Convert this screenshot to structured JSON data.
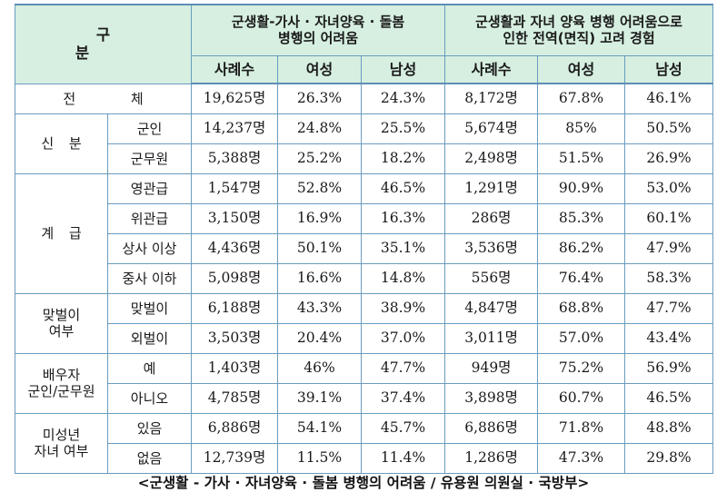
{
  "header": {
    "gubun": "구 분",
    "group1": "군생활-가사 · 자녀양육 · 돌봄\n병행의 어려움",
    "group2": "군생활과 자녀 양육 병행 어려움으로\n인한 전역(면직) 고려 경험",
    "cols": [
      "사례수",
      "여성",
      "남성",
      "사례수",
      "여성",
      "남성"
    ]
  },
  "total": {
    "label": "전 체",
    "values": [
      "19,625명",
      "26.3%",
      "24.3%",
      "8,172명",
      "67.8%",
      "46.1%"
    ]
  },
  "groups": [
    {
      "label": "신 분",
      "rows": [
        {
          "sub": "군인",
          "values": [
            "14,237명",
            "24.8%",
            "25.5%",
            "5,674명",
            "85%",
            "50.5%"
          ]
        },
        {
          "sub": "군무원",
          "values": [
            "5,388명",
            "25.2%",
            "18.2%",
            "2,498명",
            "51.5%",
            "26.9%"
          ]
        }
      ]
    },
    {
      "label": "계 급",
      "rows": [
        {
          "sub": "영관급",
          "values": [
            "1,547명",
            "52.8%",
            "46.5%",
            "1,291명",
            "90.9%",
            "53.0%"
          ]
        },
        {
          "sub": "위관급",
          "values": [
            "3,150명",
            "16.9%",
            "16.3%",
            "286명",
            "85.3%",
            "60.1%"
          ]
        },
        {
          "sub": "상사 이상",
          "values": [
            "4,436명",
            "50.1%",
            "35.1%",
            "3,536명",
            "86.2%",
            "47.9%"
          ]
        },
        {
          "sub": "중사 이하",
          "values": [
            "5,098명",
            "16.6%",
            "14.8%",
            "556명",
            "76.4%",
            "58.3%"
          ]
        }
      ]
    },
    {
      "label": "맞벌이\n여부",
      "rows": [
        {
          "sub": "맞벌이",
          "values": [
            "6,188명",
            "43.3%",
            "38.9%",
            "4,847명",
            "68.8%",
            "47.7%"
          ]
        },
        {
          "sub": "외벌이",
          "values": [
            "3,503명",
            "20.4%",
            "37.0%",
            "3,011명",
            "57.0%",
            "43.4%"
          ]
        }
      ]
    },
    {
      "label": "배우자\n군인/군무원",
      "rows": [
        {
          "sub": "예",
          "values": [
            "1,403명",
            "46%",
            "47.7%",
            "949명",
            "75.2%",
            "56.9%"
          ]
        },
        {
          "sub": "아니오",
          "values": [
            "4,785명",
            "39.1%",
            "37.4%",
            "3,898명",
            "60.7%",
            "46.5%"
          ]
        }
      ]
    },
    {
      "label": "미성년\n자녀 여부",
      "rows": [
        {
          "sub": "있음",
          "values": [
            "6,886명",
            "54.1%",
            "45.7%",
            "6,886명",
            "71.8%",
            "48.8%"
          ]
        },
        {
          "sub": "없음",
          "values": [
            "12,739명",
            "11.5%",
            "11.4%",
            "1,286명",
            "47.3%",
            "29.8%"
          ]
        }
      ]
    }
  ],
  "colors": {
    "header_bg": "#d6efe0",
    "border": "#6a9cc0"
  },
  "caption": "<군생활 - 가사 · 자녀양육 · 돌봄 병행의 어려움 / 유용원 의원실 · 국방부>"
}
